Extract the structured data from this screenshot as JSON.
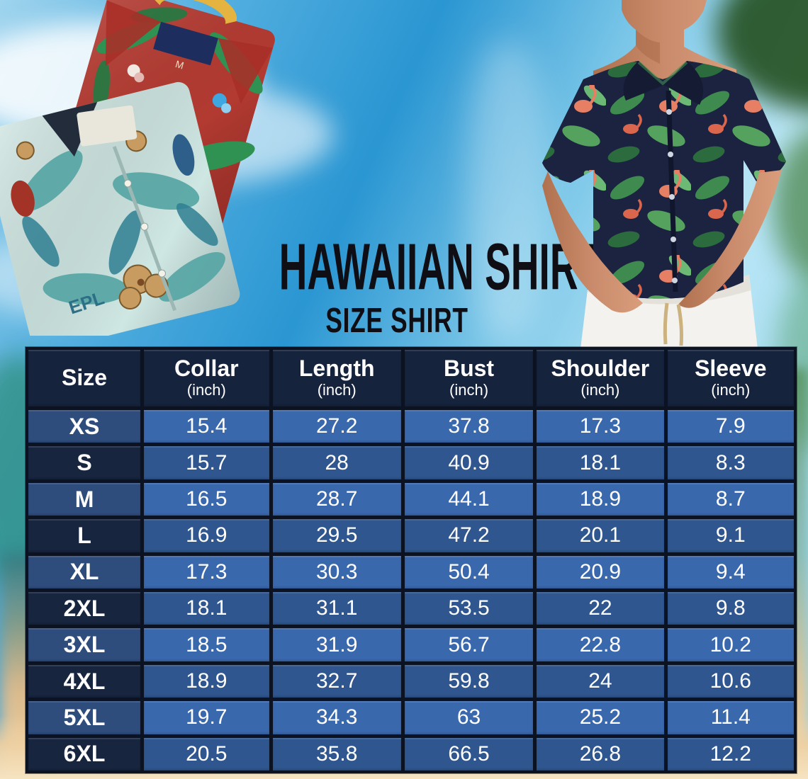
{
  "title": {
    "main": "HAWAIIAN SHIRT",
    "sub": "SIZE SHIRT"
  },
  "photos": {
    "left_shirts": {
      "red_shirt_size_tag": "M",
      "teal_shirt_print_text": "EPL"
    }
  },
  "size_table": {
    "columns": [
      {
        "label": "Size",
        "unit": ""
      },
      {
        "label": "Collar",
        "unit": "(inch)"
      },
      {
        "label": "Length",
        "unit": "(inch)"
      },
      {
        "label": "Bust",
        "unit": "(inch)"
      },
      {
        "label": "Shoulder",
        "unit": "(inch)"
      },
      {
        "label": "Sleeve",
        "unit": "(inch)"
      }
    ],
    "rows": [
      {
        "size": "XS",
        "values": [
          "15.4",
          "27.2",
          "37.8",
          "17.3",
          "7.9"
        ]
      },
      {
        "size": "S",
        "values": [
          "15.7",
          "28",
          "40.9",
          "18.1",
          "8.3"
        ]
      },
      {
        "size": "M",
        "values": [
          "16.5",
          "28.7",
          "44.1",
          "18.9",
          "8.7"
        ]
      },
      {
        "size": "L",
        "values": [
          "16.9",
          "29.5",
          "47.2",
          "20.1",
          "9.1"
        ]
      },
      {
        "size": "XL",
        "values": [
          "17.3",
          "30.3",
          "50.4",
          "20.9",
          "9.4"
        ]
      },
      {
        "size": "2XL",
        "values": [
          "18.1",
          "31.1",
          "53.5",
          "22",
          "9.8"
        ]
      },
      {
        "size": "3XL",
        "values": [
          "18.5",
          "31.9",
          "56.7",
          "22.8",
          "10.2"
        ]
      },
      {
        "size": "4XL",
        "values": [
          "18.9",
          "32.7",
          "59.8",
          "24",
          "10.6"
        ]
      },
      {
        "size": "5XL",
        "values": [
          "19.7",
          "34.3",
          "63",
          "25.2",
          "11.4"
        ]
      },
      {
        "size": "6XL",
        "values": [
          "20.5",
          "35.8",
          "66.5",
          "26.8",
          "12.2"
        ]
      }
    ]
  },
  "colors": {
    "header_bg": "#16233d",
    "row_blue": "#3a68ad",
    "row_blue_dark": "#2f568e",
    "size_col": "#2e4c7c",
    "size_col_dark": "#17253f",
    "border": "#0b1322",
    "title_text": "#0e0e14",
    "sky_blue": "#2a96d2",
    "sand": "#f0d5a8",
    "shirt_red": "#b23a31",
    "shirt_teal": "#cfe7e3",
    "man_shirt_navy": "#1b2340",
    "leaf_green": "#3f8e50",
    "flamingo_pink": "#ee8366",
    "pants_white": "#f3f2ee",
    "skin": "#c98b6b"
  }
}
